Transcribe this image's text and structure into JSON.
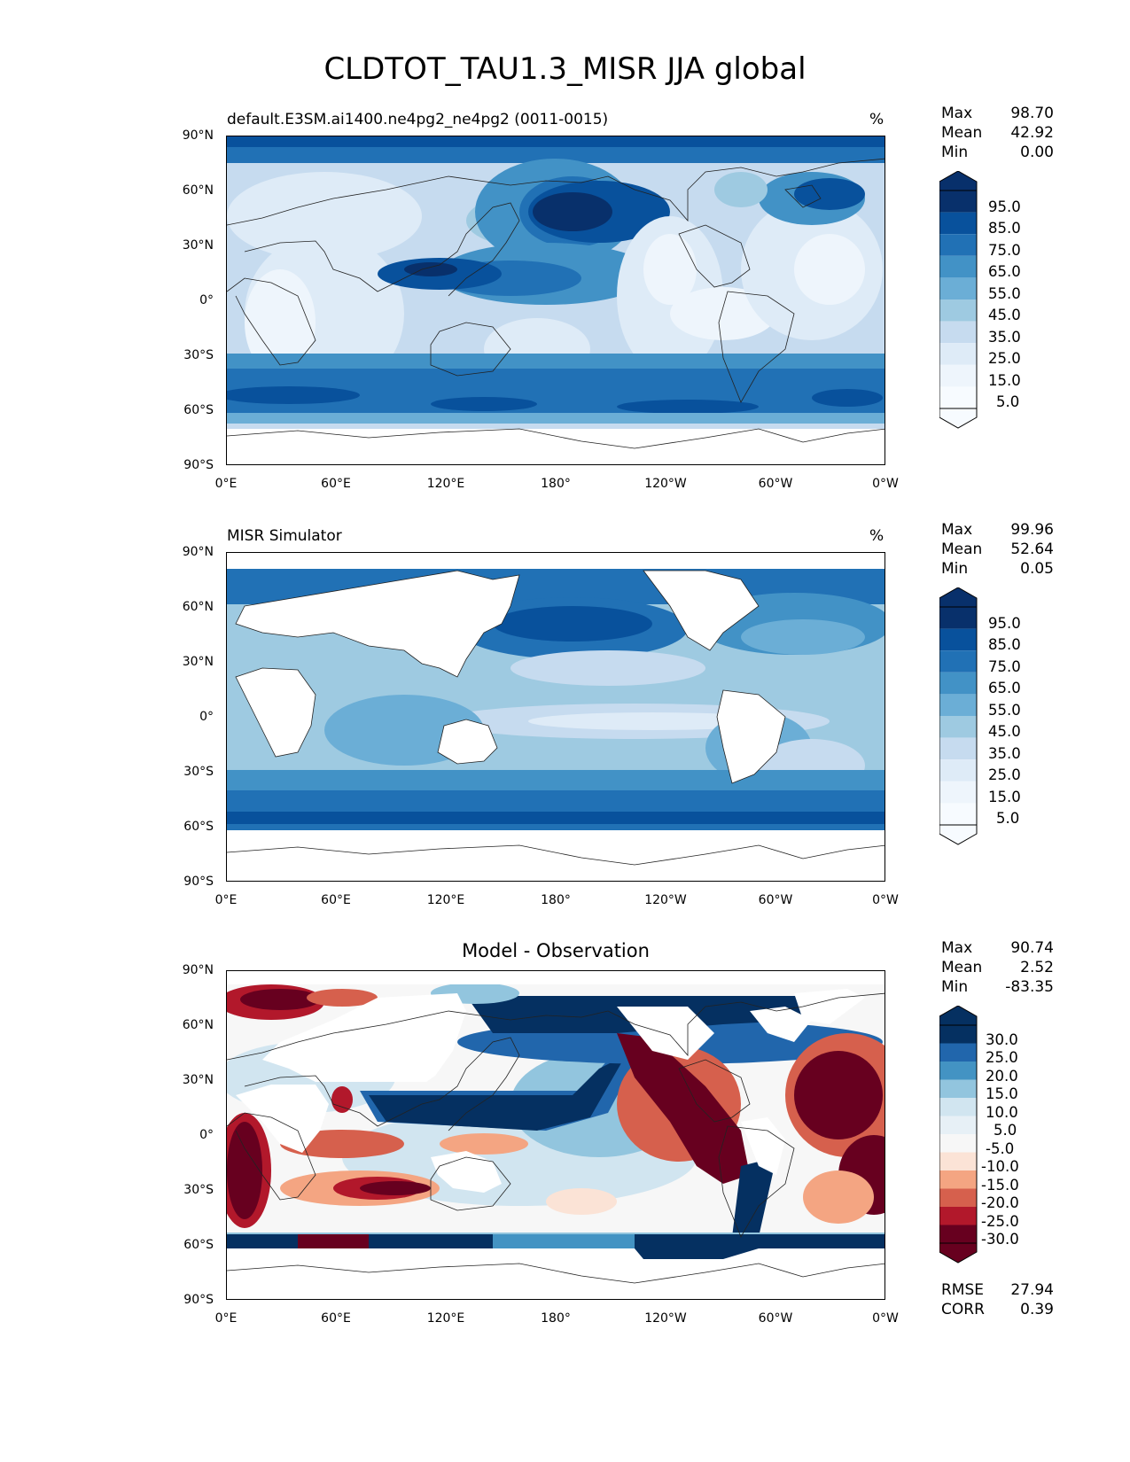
{
  "figure": {
    "title": "CLDTOT_TAU1.3_MISR JJA global",
    "lat_labels": [
      "90°N",
      "60°N",
      "30°N",
      "0°",
      "30°S",
      "60°S",
      "90°S"
    ],
    "lon_labels": [
      "0°E",
      "60°E",
      "120°E",
      "180°",
      "120°W",
      "60°W",
      "0°W"
    ]
  },
  "panels": [
    {
      "title": "default.E3SM.ai1400.ne4pg2_ne4pg2 (0011-0015)",
      "units": "%",
      "stats": {
        "max_label": "Max",
        "max": "98.70",
        "mean_label": "Mean",
        "mean": "42.92",
        "min_label": "Min",
        "min": "0.00"
      },
      "colorbar_labels": [
        "95.0",
        "85.0",
        "75.0",
        "65.0",
        "55.0",
        "45.0",
        "35.0",
        "25.0",
        "15.0",
        "5.0"
      ],
      "colors": [
        "#08306b",
        "#08519c",
        "#2171b5",
        "#4292c6",
        "#6baed6",
        "#9ecae1",
        "#c6dbef",
        "#deebf7",
        "#eef5fc",
        "#f7fbff"
      ]
    },
    {
      "title": "MISR Simulator",
      "units": "%",
      "stats": {
        "max_label": "Max",
        "max": "99.96",
        "mean_label": "Mean",
        "mean": "52.64",
        "min_label": "Min",
        "min": "0.05"
      },
      "colorbar_labels": [
        "95.0",
        "85.0",
        "75.0",
        "65.0",
        "55.0",
        "45.0",
        "35.0",
        "25.0",
        "15.0",
        "5.0"
      ],
      "colors": [
        "#08306b",
        "#08519c",
        "#2171b5",
        "#4292c6",
        "#6baed6",
        "#9ecae1",
        "#c6dbef",
        "#deebf7",
        "#eef5fc",
        "#f7fbff"
      ]
    },
    {
      "title": "Model - Observation",
      "units": "",
      "stats": {
        "max_label": "Max",
        "max": "90.74",
        "mean_label": "Mean",
        "mean": "2.52",
        "min_label": "Min",
        "min": "-83.35"
      },
      "colorbar_labels": [
        "30.0",
        "25.0",
        "20.0",
        "15.0",
        "10.0",
        "5.0",
        "-5.0",
        "-10.0",
        "-15.0",
        "-20.0",
        "-25.0",
        "-30.0"
      ],
      "colors": [
        "#053061",
        "#2166ac",
        "#4393c3",
        "#92c5de",
        "#d1e5f0",
        "#e7f0f6",
        "#f7f7f7",
        "#fbe3d6",
        "#f4a582",
        "#d6604d",
        "#b2182b",
        "#67001f"
      ],
      "rmse_label": "RMSE",
      "rmse": "27.94",
      "corr_label": "CORR",
      "corr": "0.39"
    }
  ]
}
